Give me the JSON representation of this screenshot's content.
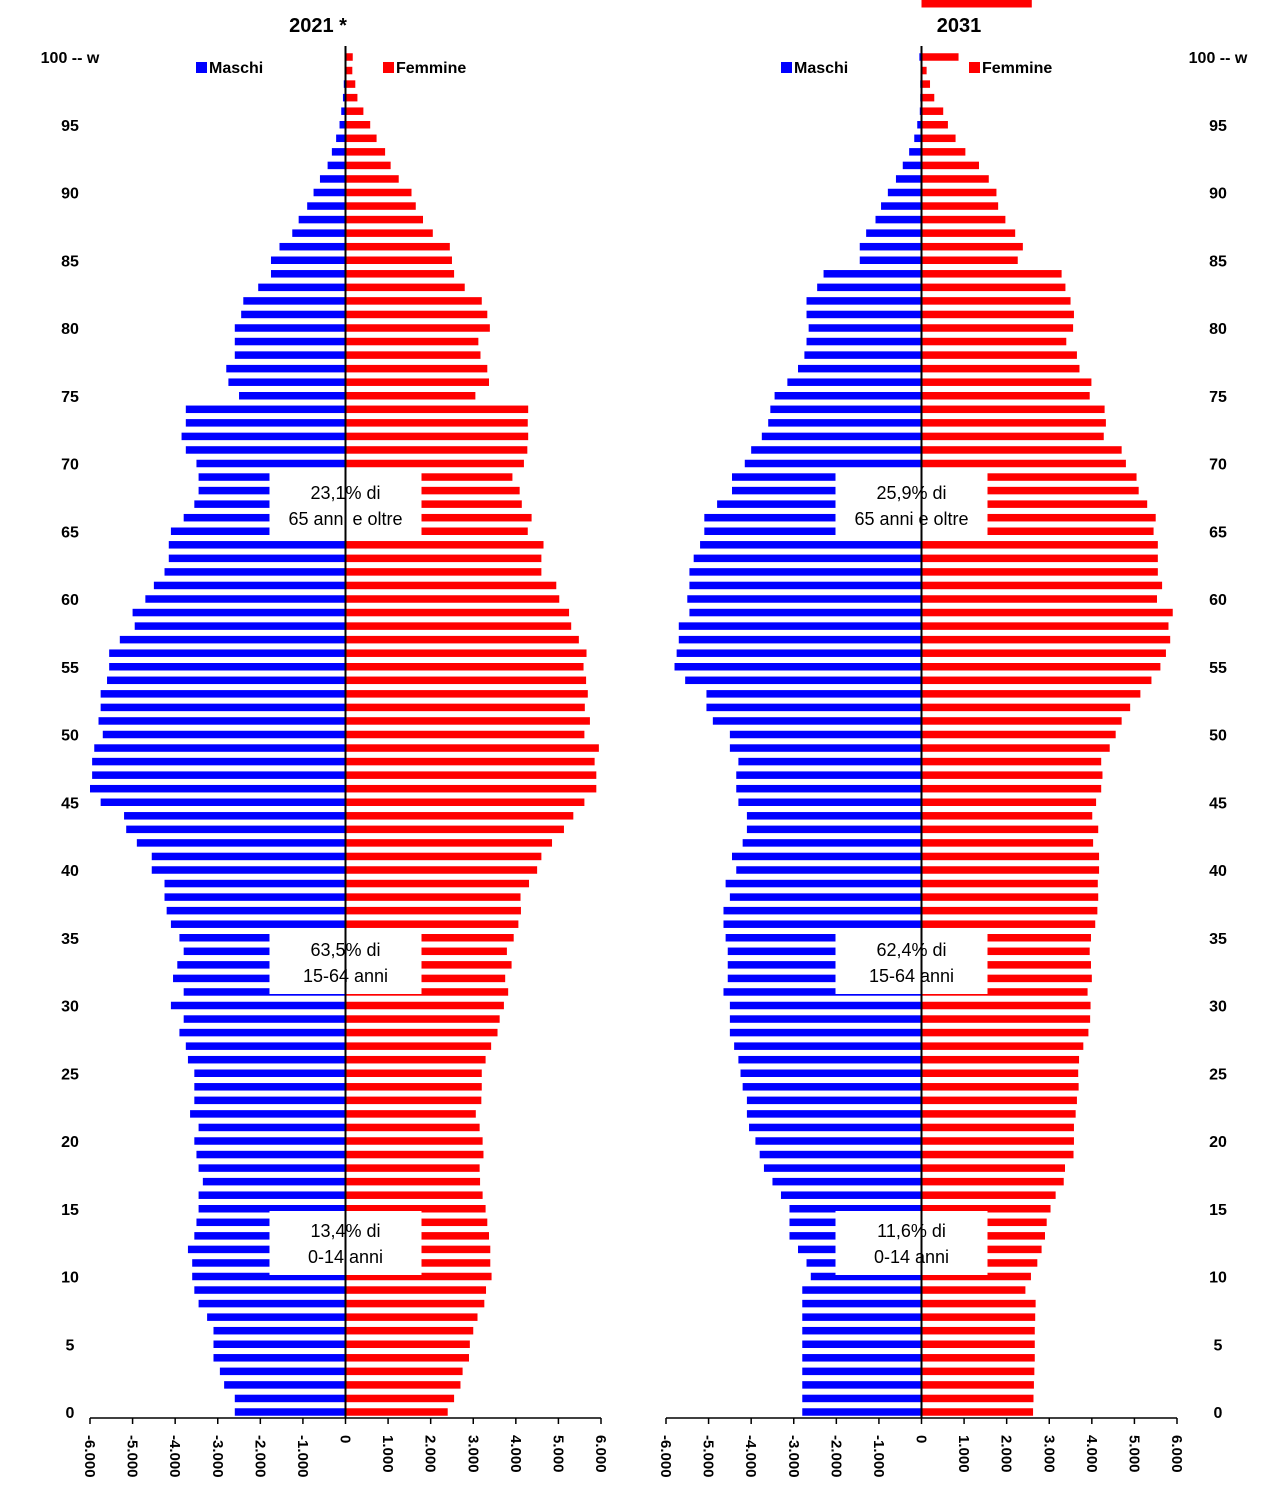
{
  "colors": {
    "male": "#0000FF",
    "female": "#FF0000",
    "axis": "#000000"
  },
  "age_label_top": "100 -- w",
  "age_ticks": [
    "95",
    "90",
    "85",
    "80",
    "75",
    "70",
    "65",
    "60",
    "55",
    "50",
    "45",
    "40",
    "35",
    "30",
    "25",
    "20",
    "15",
    "10",
    "5",
    "0"
  ],
  "x_ticks": [
    "-6.000",
    "-5.000",
    "-4.000",
    "-3.000",
    "-2.000",
    "-1.000",
    "0",
    "1.000",
    "2.000",
    "3.000",
    "4.000",
    "5.000",
    "6.000"
  ],
  "legend": {
    "male": "Maschi",
    "female": "Femmine"
  },
  "chart_data": [
    {
      "type": "bar",
      "orientation": "horizontal",
      "title": "2021 *",
      "xlim": [
        -6000,
        6000
      ],
      "ages": [
        100,
        99,
        98,
        97,
        96,
        95,
        94,
        93,
        92,
        91,
        90,
        89,
        88,
        87,
        86,
        85,
        84,
        83,
        82,
        81,
        80,
        79,
        78,
        77,
        76,
        75,
        74,
        73,
        72,
        71,
        70,
        69,
        68,
        67,
        66,
        65,
        64,
        63,
        62,
        61,
        60,
        59,
        58,
        57,
        56,
        55,
        54,
        53,
        52,
        51,
        50,
        49,
        48,
        47,
        46,
        45,
        44,
        43,
        42,
        41,
        40,
        39,
        38,
        37,
        36,
        35,
        34,
        33,
        32,
        31,
        30,
        29,
        28,
        27,
        26,
        25,
        24,
        23,
        22,
        21,
        20,
        19,
        18,
        17,
        16,
        15,
        14,
        13,
        12,
        11,
        10,
        9,
        8,
        7,
        6,
        5,
        4,
        3,
        2,
        1,
        0
      ],
      "series": [
        {
          "name": "Maschi",
          "values": [
            -10,
            -20,
            -40,
            -60,
            -100,
            -140,
            -220,
            -320,
            -420,
            -600,
            -750,
            -900,
            -1100,
            -1250,
            -1550,
            -1750,
            -1750,
            -2050,
            -2400,
            -2450,
            -2600,
            -2600,
            -2600,
            -2800,
            -2750,
            -2500,
            -3750,
            -3750,
            -3850,
            -3750,
            -3500,
            -3450,
            -3450,
            -3550,
            -3800,
            -4100,
            -4150,
            -4150,
            -4250,
            -4500,
            -4700,
            -5000,
            -4950,
            -5300,
            -5550,
            -5550,
            -5600,
            -5750,
            -5750,
            -5800,
            -5700,
            -5900,
            -5950,
            -5950,
            -6000,
            -5750,
            -5200,
            -5150,
            -4900,
            -4550,
            -4550,
            -4250,
            -4250,
            -4200,
            -4100,
            -3900,
            -3800,
            -3950,
            -4050,
            -3800,
            -4100,
            -3800,
            -3900,
            -3750,
            -3700,
            -3550,
            -3550,
            -3550,
            -3650,
            -3450,
            -3550,
            -3500,
            -3450,
            -3350,
            -3450,
            -3450,
            -3500,
            -3550,
            -3700,
            -3600,
            -3600,
            -3550,
            -3450,
            -3250,
            -3100,
            -3100,
            -3100,
            -2950,
            -2850,
            -2600,
            -2600
          ]
        },
        {
          "name": "Femmine",
          "values": [
            170,
            160,
            230,
            280,
            420,
            580,
            730,
            930,
            1060,
            1250,
            1550,
            1650,
            1820,
            2050,
            2450,
            2500,
            2550,
            2800,
            3200,
            3330,
            3390,
            3120,
            3170,
            3330,
            3370,
            3050,
            4290,
            4280,
            4290,
            4270,
            4190,
            3920,
            4090,
            4140,
            4370,
            4280,
            4650,
            4600,
            4600,
            4950,
            5020,
            5250,
            5300,
            5480,
            5660,
            5590,
            5650,
            5690,
            5620,
            5740,
            5610,
            5950,
            5850,
            5890,
            5890,
            5610,
            5350,
            5130,
            4850,
            4600,
            4500,
            4310,
            4110,
            4120,
            4060,
            3950,
            3790,
            3900,
            3750,
            3820,
            3720,
            3620,
            3570,
            3420,
            3290,
            3200,
            3200,
            3190,
            3060,
            3150,
            3220,
            3240,
            3150,
            3160,
            3220,
            3290,
            3330,
            3370,
            3400,
            3400,
            3430,
            3300,
            3260,
            3100,
            3000,
            2920,
            2900,
            2750,
            2700,
            2550,
            2400
          ]
        }
      ],
      "annotations": [
        {
          "pct": "23,1% di",
          "label": "65 anni e oltre"
        },
        {
          "pct": "63,5% di",
          "label": "15-64 anni"
        },
        {
          "pct": "13,4% di",
          "label": "0-14 anni"
        }
      ]
    },
    {
      "type": "bar",
      "orientation": "horizontal",
      "title": "2031",
      "xlim": [
        -6000,
        6000
      ],
      "ages": [
        100,
        99,
        98,
        97,
        96,
        95,
        94,
        93,
        92,
        91,
        90,
        89,
        88,
        87,
        86,
        85,
        84,
        83,
        82,
        81,
        80,
        79,
        78,
        77,
        76,
        75,
        74,
        73,
        72,
        71,
        70,
        69,
        68,
        67,
        66,
        65,
        64,
        63,
        62,
        61,
        60,
        59,
        58,
        57,
        56,
        55,
        54,
        53,
        52,
        51,
        50,
        49,
        48,
        47,
        46,
        45,
        44,
        43,
        42,
        41,
        40,
        39,
        38,
        37,
        36,
        35,
        34,
        33,
        32,
        31,
        30,
        29,
        28,
        27,
        26,
        25,
        24,
        23,
        22,
        21,
        20,
        19,
        18,
        17,
        16,
        15,
        14,
        13,
        12,
        11,
        10,
        9,
        8,
        7,
        6,
        5,
        4,
        3,
        2,
        1,
        0
      ],
      "series": [
        {
          "name": "Maschi",
          "values": [
            -50,
            -20,
            -30,
            -30,
            -40,
            -100,
            -170,
            -290,
            -440,
            -600,
            -790,
            -950,
            -1080,
            -1300,
            -1450,
            -1450,
            -2300,
            -2450,
            -2700,
            -2700,
            -2650,
            -2700,
            -2750,
            -2900,
            -3150,
            -3450,
            -3550,
            -3600,
            -3750,
            -4000,
            -4150,
            -4450,
            -4450,
            -4800,
            -5100,
            -5100,
            -5200,
            -5350,
            -5450,
            -5450,
            -5500,
            -5450,
            -5700,
            -5700,
            -5750,
            -5800,
            -5550,
            -5050,
            -5050,
            -4900,
            -4500,
            -4500,
            -4300,
            -4350,
            -4350,
            -4300,
            -4100,
            -4100,
            -4200,
            -4450,
            -4350,
            -4600,
            -4500,
            -4650,
            -4650,
            -4600,
            -4550,
            -4550,
            -4550,
            -4650,
            -4500,
            -4500,
            -4500,
            -4400,
            -4300,
            -4250,
            -4200,
            -4100,
            -4100,
            -4050,
            -3900,
            -3800,
            -3700,
            -3500,
            -3300,
            -3100,
            -3100,
            -3100,
            -2900,
            -2700,
            -2600,
            -2800,
            -2800,
            -2800,
            -2800,
            -2800,
            -2800,
            -2800,
            -2800,
            -2800,
            -2800
          ]
        },
        {
          "name": "Femmine",
          "values": [
            870,
            120,
            200,
            300,
            510,
            620,
            800,
            1030,
            1350,
            1580,
            1760,
            1800,
            1970,
            2200,
            2380,
            2260,
            3290,
            3380,
            3500,
            3580,
            3560,
            3400,
            3650,
            3710,
            3990,
            3950,
            4300,
            4330,
            4280,
            4700,
            4800,
            5050,
            5100,
            5300,
            5500,
            5450,
            5550,
            5550,
            5550,
            5650,
            5530,
            5900,
            5800,
            5840,
            5740,
            5610,
            5400,
            5140,
            4900,
            4700,
            4560,
            4420,
            4220,
            4250,
            4220,
            4100,
            4010,
            4150,
            4030,
            4170,
            4170,
            4140,
            4150,
            4130,
            4080,
            3980,
            3950,
            3980,
            4000,
            3900,
            3970,
            3960,
            3920,
            3800,
            3700,
            3680,
            3690,
            3650,
            3620,
            3580,
            3580,
            3570,
            3370,
            3340,
            3150,
            3030,
            2940,
            2900,
            2820,
            2720,
            2570,
            2440,
            2680,
            2670,
            2660,
            2660,
            2660,
            2650,
            2640,
            2630,
            2620,
            2590
          ]
        }
      ],
      "annotations": [
        {
          "pct": "25,9% di",
          "label": "65 anni e oltre"
        },
        {
          "pct": "62,4% di",
          "label": "15-64 anni"
        },
        {
          "pct": "11,6% di",
          "label": "0-14 anni"
        }
      ]
    }
  ]
}
